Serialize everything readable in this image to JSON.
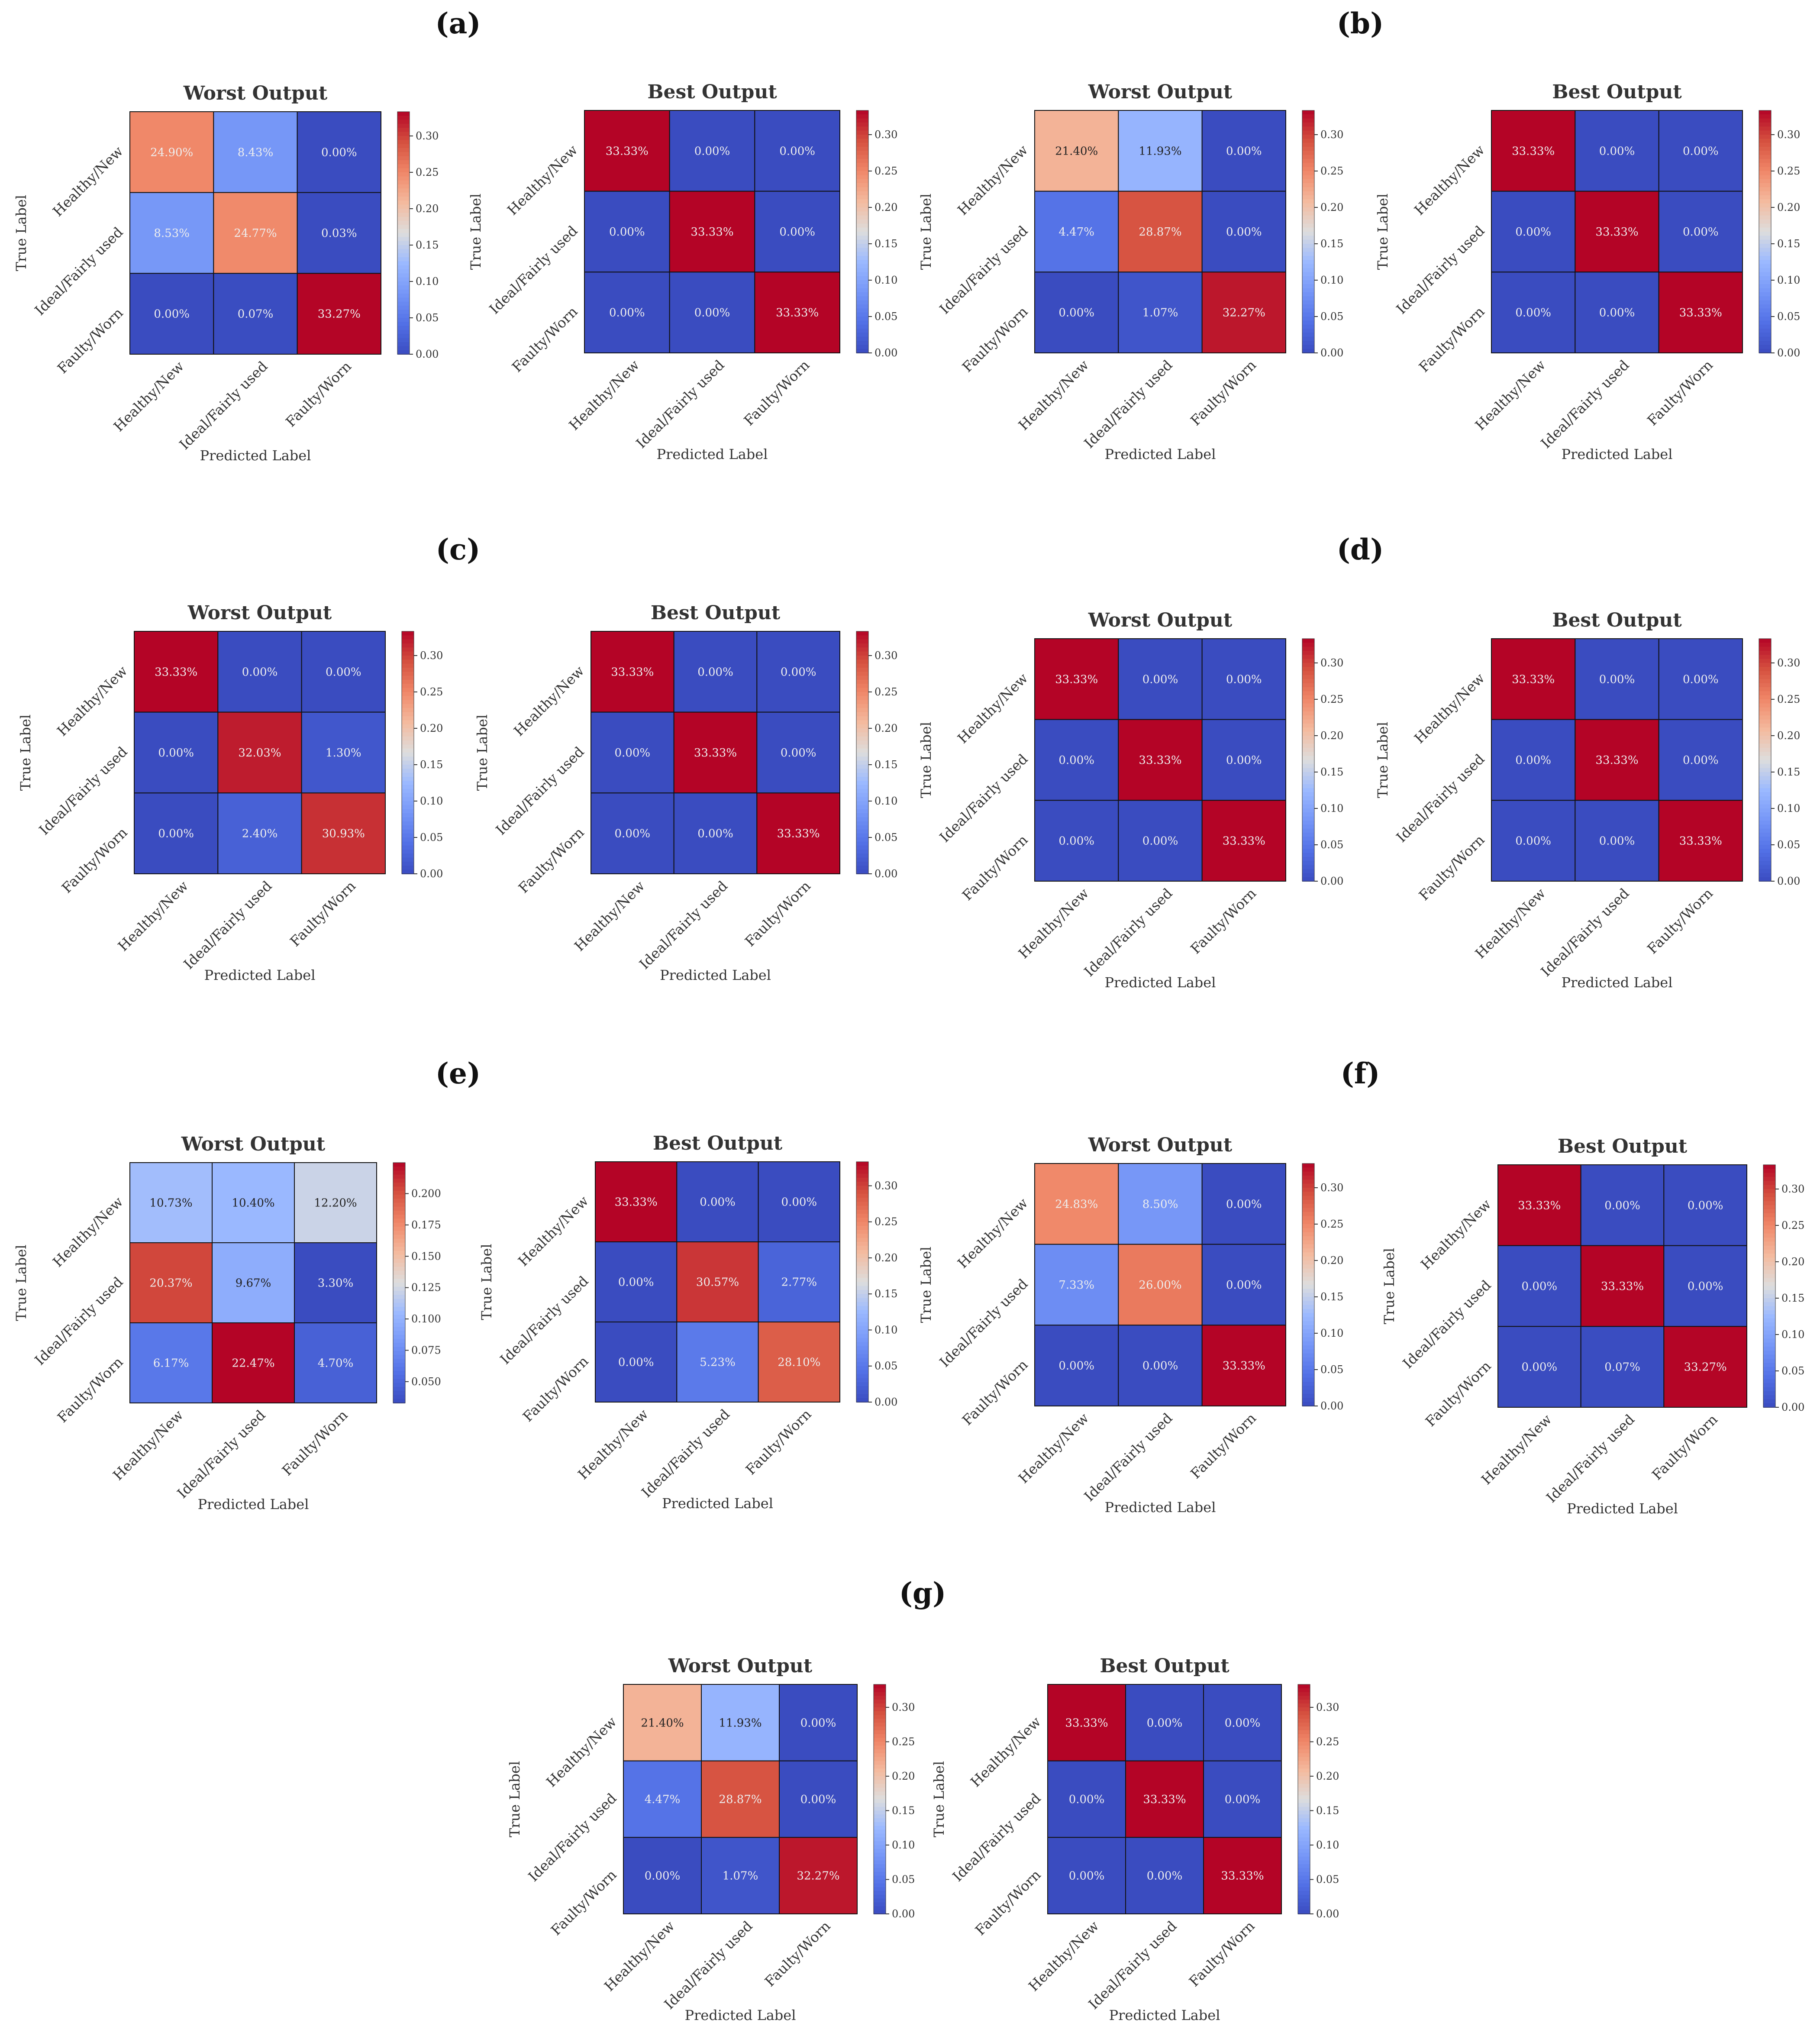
{
  "panels": [
    {
      "label": "(a)"
    },
    {
      "label": "(b)"
    },
    {
      "label": "(c)"
    },
    {
      "label": "(d)"
    },
    {
      "label": "(e)"
    },
    {
      "label": "(f)"
    },
    {
      "label": "(g)"
    }
  ],
  "chart_data": [
    {
      "type": "heatmap",
      "panel": "(a)",
      "title": "Worst Output",
      "xlabel": "Predicted Label",
      "ylabel": "True Label",
      "categories": [
        "Healthy/New",
        "Ideal/Fairly used",
        "Faulty/Worn"
      ],
      "values": [
        [
          0.249,
          0.0843,
          0.0
        ],
        [
          0.0853,
          0.2477,
          0.0003
        ],
        [
          0.0,
          0.0007,
          0.3327
        ]
      ],
      "cell_labels": [
        [
          "24.90%",
          "8.43%",
          "0.00%"
        ],
        [
          "8.53%",
          "24.77%",
          "0.03%"
        ],
        [
          "0.00%",
          "0.07%",
          "33.27%"
        ]
      ],
      "vmin": 0,
      "vmax": 0.3333,
      "colorbar_ticks": [
        0.0,
        0.05,
        0.1,
        0.15,
        0.2,
        0.25,
        0.3
      ],
      "colorbar_tick_labels": [
        "0.00",
        "0.05",
        "0.10",
        "0.15",
        "0.20",
        "0.25",
        "0.30"
      ]
    },
    {
      "type": "heatmap",
      "panel": "(a)",
      "title": "Best Output",
      "xlabel": "Predicted Label",
      "ylabel": "True Label",
      "categories": [
        "Healthy/New",
        "Ideal/Fairly used",
        "Faulty/Worn"
      ],
      "values": [
        [
          0.3333,
          0,
          0
        ],
        [
          0,
          0.3333,
          0
        ],
        [
          0,
          0,
          0.3333
        ]
      ],
      "cell_labels": [
        [
          "33.33%",
          "0.00%",
          "0.00%"
        ],
        [
          "0.00%",
          "33.33%",
          "0.00%"
        ],
        [
          "0.00%",
          "0.00%",
          "33.33%"
        ]
      ],
      "vmin": 0,
      "vmax": 0.3333,
      "colorbar_ticks": [
        0.0,
        0.05,
        0.1,
        0.15,
        0.2,
        0.25,
        0.3
      ],
      "colorbar_tick_labels": [
        "0.00",
        "0.05",
        "0.10",
        "0.15",
        "0.20",
        "0.25",
        "0.30"
      ]
    },
    {
      "type": "heatmap",
      "panel": "(b)",
      "title": "Worst Output",
      "xlabel": "Predicted Label",
      "ylabel": "True Label",
      "categories": [
        "Healthy/New",
        "Ideal/Fairly used",
        "Faulty/Worn"
      ],
      "values": [
        [
          0.214,
          0.1193,
          0.0
        ],
        [
          0.0447,
          0.2887,
          0.0
        ],
        [
          0.0,
          0.0107,
          0.3227
        ]
      ],
      "cell_labels": [
        [
          "21.40%",
          "11.93%",
          "0.00%"
        ],
        [
          "4.47%",
          "28.87%",
          "0.00%"
        ],
        [
          "0.00%",
          "1.07%",
          "32.27%"
        ]
      ],
      "vmin": 0,
      "vmax": 0.3333,
      "colorbar_ticks": [
        0.0,
        0.05,
        0.1,
        0.15,
        0.2,
        0.25,
        0.3
      ],
      "colorbar_tick_labels": [
        "0.00",
        "0.05",
        "0.10",
        "0.15",
        "0.20",
        "0.25",
        "0.30"
      ]
    },
    {
      "type": "heatmap",
      "panel": "(b)",
      "title": "Best Output",
      "xlabel": "Predicted Label",
      "ylabel": "True Label",
      "categories": [
        "Healthy/New",
        "Ideal/Fairly used",
        "Faulty/Worn"
      ],
      "values": [
        [
          0.3333,
          0,
          0
        ],
        [
          0,
          0.3333,
          0
        ],
        [
          0,
          0,
          0.3333
        ]
      ],
      "cell_labels": [
        [
          "33.33%",
          "0.00%",
          "0.00%"
        ],
        [
          "0.00%",
          "33.33%",
          "0.00%"
        ],
        [
          "0.00%",
          "0.00%",
          "33.33%"
        ]
      ],
      "vmin": 0,
      "vmax": 0.3333,
      "colorbar_ticks": [
        0.0,
        0.05,
        0.1,
        0.15,
        0.2,
        0.25,
        0.3
      ],
      "colorbar_tick_labels": [
        "0.00",
        "0.05",
        "0.10",
        "0.15",
        "0.20",
        "0.25",
        "0.30"
      ]
    },
    {
      "type": "heatmap",
      "panel": "(c)",
      "title": "Worst Output",
      "xlabel": "Predicted Label",
      "ylabel": "True Label",
      "categories": [
        "Healthy/New",
        "Ideal/Fairly used",
        "Faulty/Worn"
      ],
      "values": [
        [
          0.3333,
          0,
          0
        ],
        [
          0,
          0.3203,
          0.013
        ],
        [
          0,
          0.024,
          0.3093
        ]
      ],
      "cell_labels": [
        [
          "33.33%",
          "0.00%",
          "0.00%"
        ],
        [
          "0.00%",
          "32.03%",
          "1.30%"
        ],
        [
          "0.00%",
          "2.40%",
          "30.93%"
        ]
      ],
      "vmin": 0,
      "vmax": 0.3333,
      "colorbar_ticks": [
        0.0,
        0.05,
        0.1,
        0.15,
        0.2,
        0.25,
        0.3
      ],
      "colorbar_tick_labels": [
        "0.00",
        "0.05",
        "0.10",
        "0.15",
        "0.20",
        "0.25",
        "0.30"
      ]
    },
    {
      "type": "heatmap",
      "panel": "(c)",
      "title": "Best Output",
      "xlabel": "Predicted Label",
      "ylabel": "True Label",
      "categories": [
        "Healthy/New",
        "Ideal/Fairly used",
        "Faulty/Worn"
      ],
      "values": [
        [
          0.3333,
          0,
          0
        ],
        [
          0,
          0.3333,
          0
        ],
        [
          0,
          0,
          0.3333
        ]
      ],
      "cell_labels": [
        [
          "33.33%",
          "0.00%",
          "0.00%"
        ],
        [
          "0.00%",
          "33.33%",
          "0.00%"
        ],
        [
          "0.00%",
          "0.00%",
          "33.33%"
        ]
      ],
      "vmin": 0,
      "vmax": 0.3333,
      "colorbar_ticks": [
        0.0,
        0.05,
        0.1,
        0.15,
        0.2,
        0.25,
        0.3
      ],
      "colorbar_tick_labels": [
        "0.00",
        "0.05",
        "0.10",
        "0.15",
        "0.20",
        "0.25",
        "0.30"
      ]
    },
    {
      "type": "heatmap",
      "panel": "(d)",
      "title": "Worst Output",
      "xlabel": "Predicted Label",
      "ylabel": "True Label",
      "categories": [
        "Healthy/New",
        "Ideal/Fairly used",
        "Faulty/Worn"
      ],
      "values": [
        [
          0.3333,
          0,
          0
        ],
        [
          0,
          0.3333,
          0
        ],
        [
          0,
          0,
          0.3333
        ]
      ],
      "cell_labels": [
        [
          "33.33%",
          "0.00%",
          "0.00%"
        ],
        [
          "0.00%",
          "33.33%",
          "0.00%"
        ],
        [
          "0.00%",
          "0.00%",
          "33.33%"
        ]
      ],
      "vmin": 0,
      "vmax": 0.3333,
      "colorbar_ticks": [
        0.0,
        0.05,
        0.1,
        0.15,
        0.2,
        0.25,
        0.3
      ],
      "colorbar_tick_labels": [
        "0.00",
        "0.05",
        "0.10",
        "0.15",
        "0.20",
        "0.25",
        "0.30"
      ]
    },
    {
      "type": "heatmap",
      "panel": "(d)",
      "title": "Best Output",
      "xlabel": "Predicted Label",
      "ylabel": "True Label",
      "categories": [
        "Healthy/New",
        "Ideal/Fairly used",
        "Faulty/Worn"
      ],
      "values": [
        [
          0.3333,
          0,
          0
        ],
        [
          0,
          0.3333,
          0
        ],
        [
          0,
          0,
          0.3333
        ]
      ],
      "cell_labels": [
        [
          "33.33%",
          "0.00%",
          "0.00%"
        ],
        [
          "0.00%",
          "33.33%",
          "0.00%"
        ],
        [
          "0.00%",
          "0.00%",
          "33.33%"
        ]
      ],
      "vmin": 0,
      "vmax": 0.3333,
      "colorbar_ticks": [
        0.0,
        0.05,
        0.1,
        0.15,
        0.2,
        0.25,
        0.3
      ],
      "colorbar_tick_labels": [
        "0.00",
        "0.05",
        "0.10",
        "0.15",
        "0.20",
        "0.25",
        "0.30"
      ]
    },
    {
      "type": "heatmap",
      "panel": "(e)",
      "title": "Worst Output",
      "xlabel": "Predicted Label",
      "ylabel": "True Label",
      "categories": [
        "Healthy/New",
        "Ideal/Fairly used",
        "Faulty/Worn"
      ],
      "values": [
        [
          0.1073,
          0.104,
          0.122
        ],
        [
          0.2037,
          0.0967,
          0.033
        ],
        [
          0.0617,
          0.2247,
          0.047
        ]
      ],
      "cell_labels": [
        [
          "10.73%",
          "10.40%",
          "12.20%"
        ],
        [
          "20.37%",
          "9.67%",
          "3.30%"
        ],
        [
          "6.17%",
          "22.47%",
          "4.70%"
        ]
      ],
      "vmin": 0.033,
      "vmax": 0.2247,
      "colorbar_ticks": [
        0.05,
        0.075,
        0.1,
        0.125,
        0.15,
        0.175,
        0.2
      ],
      "colorbar_tick_labels": [
        "0.050",
        "0.075",
        "0.100",
        "0.125",
        "0.150",
        "0.175",
        "0.200"
      ]
    },
    {
      "type": "heatmap",
      "panel": "(e)",
      "title": "Best Output",
      "xlabel": "Predicted Label",
      "ylabel": "True Label",
      "categories": [
        "Healthy/New",
        "Ideal/Fairly used",
        "Faulty/Worn"
      ],
      "values": [
        [
          0.3333,
          0,
          0
        ],
        [
          0,
          0.3057,
          0.0277
        ],
        [
          0,
          0.0523,
          0.281
        ]
      ],
      "cell_labels": [
        [
          "33.33%",
          "0.00%",
          "0.00%"
        ],
        [
          "0.00%",
          "30.57%",
          "2.77%"
        ],
        [
          "0.00%",
          "5.23%",
          "28.10%"
        ]
      ],
      "vmin": 0,
      "vmax": 0.3333,
      "colorbar_ticks": [
        0.0,
        0.05,
        0.1,
        0.15,
        0.2,
        0.25,
        0.3
      ],
      "colorbar_tick_labels": [
        "0.00",
        "0.05",
        "0.10",
        "0.15",
        "0.20",
        "0.25",
        "0.30"
      ]
    },
    {
      "type": "heatmap",
      "panel": "(f)",
      "title": "Worst Output",
      "xlabel": "Predicted Label",
      "ylabel": "True Label",
      "categories": [
        "Healthy/New",
        "Ideal/Fairly used",
        "Faulty/Worn"
      ],
      "values": [
        [
          0.2483,
          0.085,
          0
        ],
        [
          0.0733,
          0.26,
          0
        ],
        [
          0,
          0,
          0.3333
        ]
      ],
      "cell_labels": [
        [
          "24.83%",
          "8.50%",
          "0.00%"
        ],
        [
          "7.33%",
          "26.00%",
          "0.00%"
        ],
        [
          "0.00%",
          "0.00%",
          "33.33%"
        ]
      ],
      "vmin": 0,
      "vmax": 0.3333,
      "colorbar_ticks": [
        0.0,
        0.05,
        0.1,
        0.15,
        0.2,
        0.25,
        0.3
      ],
      "colorbar_tick_labels": [
        "0.00",
        "0.05",
        "0.10",
        "0.15",
        "0.20",
        "0.25",
        "0.30"
      ]
    },
    {
      "type": "heatmap",
      "panel": "(f)",
      "title": "Best Output",
      "xlabel": "Predicted Label",
      "ylabel": "True Label",
      "categories": [
        "Healthy/New",
        "Ideal/Fairly used",
        "Faulty/Worn"
      ],
      "values": [
        [
          0.3333,
          0,
          0
        ],
        [
          0,
          0.3333,
          0
        ],
        [
          0,
          0.0007,
          0.3327
        ]
      ],
      "cell_labels": [
        [
          "33.33%",
          "0.00%",
          "0.00%"
        ],
        [
          "0.00%",
          "33.33%",
          "0.00%"
        ],
        [
          "0.00%",
          "0.07%",
          "33.27%"
        ]
      ],
      "vmin": 0,
      "vmax": 0.3333,
      "colorbar_ticks": [
        0.0,
        0.05,
        0.1,
        0.15,
        0.2,
        0.25,
        0.3
      ],
      "colorbar_tick_labels": [
        "0.00",
        "0.05",
        "0.10",
        "0.15",
        "0.20",
        "0.25",
        "0.30"
      ]
    },
    {
      "type": "heatmap",
      "panel": "(g)",
      "title": "Worst Output",
      "xlabel": "Predicted Label",
      "ylabel": "True Label",
      "categories": [
        "Healthy/New",
        "Ideal/Fairly used",
        "Faulty/Worn"
      ],
      "values": [
        [
          0.214,
          0.1193,
          0
        ],
        [
          0.0447,
          0.2887,
          0
        ],
        [
          0,
          0.0107,
          0.3227
        ]
      ],
      "cell_labels": [
        [
          "21.40%",
          "11.93%",
          "0.00%"
        ],
        [
          "4.47%",
          "28.87%",
          "0.00%"
        ],
        [
          "0.00%",
          "1.07%",
          "32.27%"
        ]
      ],
      "vmin": 0,
      "vmax": 0.3333,
      "colorbar_ticks": [
        0.0,
        0.05,
        0.1,
        0.15,
        0.2,
        0.25,
        0.3
      ],
      "colorbar_tick_labels": [
        "0.00",
        "0.05",
        "0.10",
        "0.15",
        "0.20",
        "0.25",
        "0.30"
      ]
    },
    {
      "type": "heatmap",
      "panel": "(g)",
      "title": "Best Output",
      "xlabel": "Predicted Label",
      "ylabel": "True Label",
      "categories": [
        "Healthy/New",
        "Ideal/Fairly used",
        "Faulty/Worn"
      ],
      "values": [
        [
          0.3333,
          0,
          0
        ],
        [
          0,
          0.3333,
          0
        ],
        [
          0,
          0,
          0.3333
        ]
      ],
      "cell_labels": [
        [
          "33.33%",
          "0.00%",
          "0.00%"
        ],
        [
          "0.00%",
          "33.33%",
          "0.00%"
        ],
        [
          "0.00%",
          "0.00%",
          "33.33%"
        ]
      ],
      "vmin": 0,
      "vmax": 0.3333,
      "colorbar_ticks": [
        0.0,
        0.05,
        0.1,
        0.15,
        0.2,
        0.25,
        0.3
      ],
      "colorbar_tick_labels": [
        "0.00",
        "0.05",
        "0.10",
        "0.15",
        "0.20",
        "0.25",
        "0.30"
      ]
    }
  ]
}
